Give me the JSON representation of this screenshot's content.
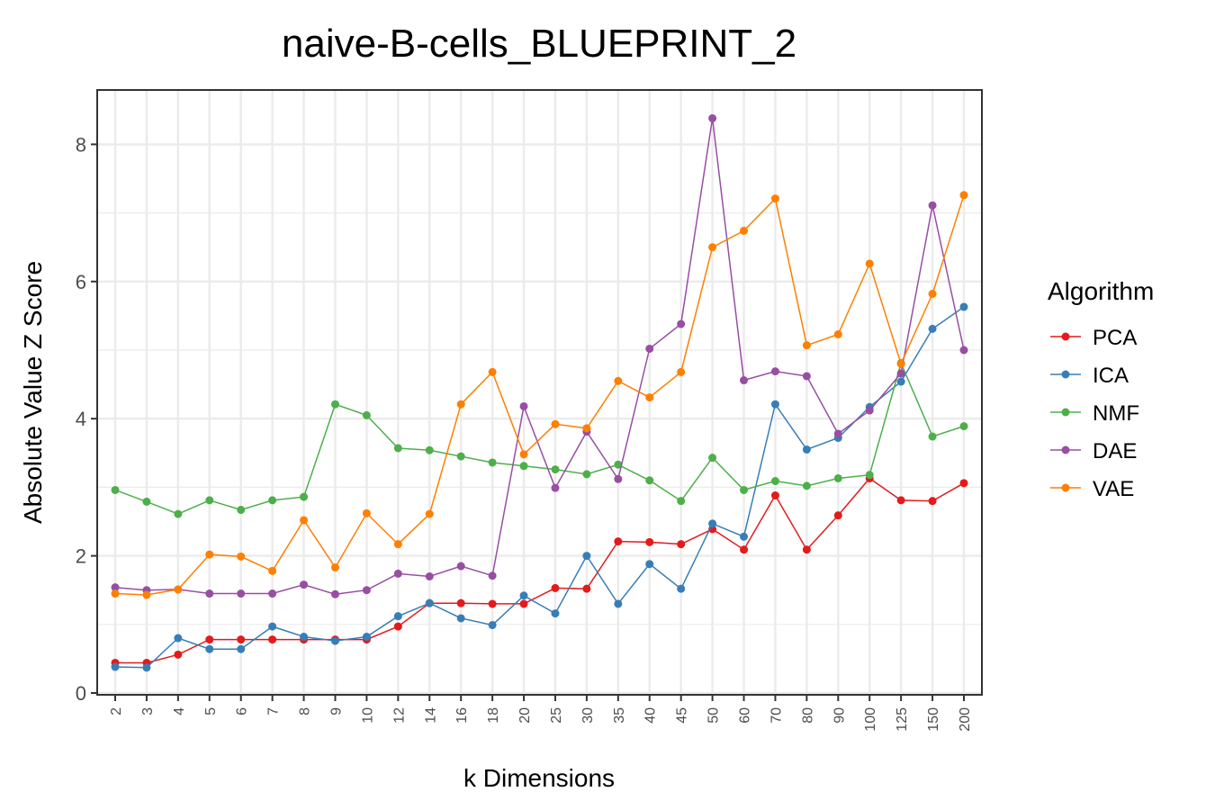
{
  "chart_data": {
    "type": "line",
    "title": "naive-B-cells_BLUEPRINT_2",
    "xlabel": "k Dimensions",
    "ylabel": "Absolute Value Z Score",
    "categories": [
      "2",
      "3",
      "4",
      "5",
      "6",
      "7",
      "8",
      "9",
      "10",
      "12",
      "14",
      "16",
      "18",
      "20",
      "25",
      "30",
      "35",
      "40",
      "45",
      "50",
      "60",
      "70",
      "80",
      "90",
      "100",
      "125",
      "150",
      "200"
    ],
    "ylim": [
      0,
      8.8
    ],
    "yticks": [
      "0",
      "2",
      "4",
      "6",
      "8"
    ],
    "grid": true,
    "legend": {
      "title": "Algorithm",
      "position": "right"
    },
    "series": [
      {
        "name": "PCA",
        "color": "#e41a1c",
        "values": [
          0.44,
          0.44,
          0.56,
          0.78,
          0.78,
          0.78,
          0.78,
          0.78,
          0.78,
          0.97,
          1.31,
          1.31,
          1.3,
          1.3,
          1.53,
          1.52,
          2.21,
          2.2,
          2.17,
          2.39,
          2.09,
          2.88,
          2.09,
          2.59,
          3.13,
          2.81,
          2.8,
          3.06
        ]
      },
      {
        "name": "ICA",
        "color": "#377eb8",
        "values": [
          0.38,
          0.37,
          0.8,
          0.64,
          0.64,
          0.97,
          0.82,
          0.76,
          0.82,
          1.12,
          1.31,
          1.09,
          0.99,
          1.42,
          1.16,
          2.0,
          1.3,
          1.88,
          1.52,
          2.47,
          2.28,
          4.21,
          3.55,
          3.72,
          4.17,
          4.54,
          5.31,
          5.63
        ]
      },
      {
        "name": "NMF",
        "color": "#4daf4a",
        "values": [
          2.96,
          2.79,
          2.61,
          2.81,
          2.67,
          2.81,
          2.86,
          4.21,
          4.05,
          3.57,
          3.54,
          3.45,
          3.36,
          3.31,
          3.26,
          3.19,
          3.33,
          3.1,
          2.8,
          3.43,
          2.96,
          3.09,
          3.02,
          3.13,
          3.18,
          4.81,
          3.74,
          3.89
        ]
      },
      {
        "name": "DAE",
        "color": "#984ea3",
        "values": [
          1.54,
          1.5,
          1.51,
          1.45,
          1.45,
          1.45,
          1.58,
          1.44,
          1.5,
          1.74,
          1.7,
          1.85,
          1.71,
          4.18,
          2.99,
          3.81,
          3.12,
          5.02,
          5.38,
          8.38,
          4.56,
          4.69,
          4.62,
          3.78,
          4.12,
          4.66,
          7.11,
          5.0
        ]
      },
      {
        "name": "VAE",
        "color": "#ff7f00",
        "values": [
          1.45,
          1.43,
          1.51,
          2.02,
          1.99,
          1.78,
          2.52,
          1.83,
          2.62,
          2.17,
          2.61,
          4.21,
          4.68,
          3.48,
          3.92,
          3.86,
          4.55,
          4.31,
          4.68,
          6.5,
          6.74,
          7.21,
          5.07,
          5.23,
          6.26,
          4.8,
          5.82,
          7.26
        ]
      }
    ]
  }
}
